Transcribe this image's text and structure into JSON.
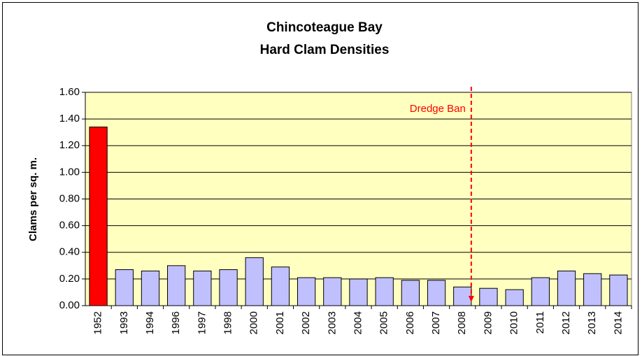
{
  "chart_data": {
    "type": "bar",
    "title": [
      "Chincoteague Bay",
      "Hard Clam Densities"
    ],
    "y_label": "Clams per sq. m.",
    "categories": [
      "1952",
      "1993",
      "1994",
      "1996",
      "1997",
      "1998",
      "2000",
      "2001",
      "2002",
      "2003",
      "2004",
      "2005",
      "2006",
      "2007",
      "2008",
      "2009",
      "2010",
      "2011",
      "2012",
      "2013",
      "2014"
    ],
    "values": [
      1.34,
      0.27,
      0.26,
      0.3,
      0.26,
      0.27,
      0.36,
      0.29,
      0.21,
      0.21,
      0.2,
      0.21,
      0.19,
      0.19,
      0.14,
      0.13,
      0.12,
      0.21,
      0.26,
      0.24,
      0.23
    ],
    "colors": [
      "#ff0000",
      "#c0c0ff",
      "#c0c0ff",
      "#c0c0ff",
      "#c0c0ff",
      "#c0c0ff",
      "#c0c0ff",
      "#c0c0ff",
      "#c0c0ff",
      "#c0c0ff",
      "#c0c0ff",
      "#c0c0ff",
      "#c0c0ff",
      "#c0c0ff",
      "#c0c0ff",
      "#c0c0ff",
      "#c0c0ff",
      "#c0c0ff",
      "#c0c0ff",
      "#c0c0ff",
      "#c0c0ff"
    ],
    "ylim": [
      0,
      1.6
    ],
    "yticks": [
      {
        "value": 0,
        "label": "0.00"
      },
      {
        "value": 0.2,
        "label": "0.20"
      },
      {
        "value": 0.4,
        "label": "0.40"
      },
      {
        "value": 0.6,
        "label": "0.60"
      },
      {
        "value": 0.8,
        "label": "0.80"
      },
      {
        "value": 1.0,
        "label": "1.00"
      },
      {
        "value": 1.2,
        "label": "1.20"
      },
      {
        "value": 1.4,
        "label": "1.40"
      },
      {
        "value": 1.6,
        "label": "1.60"
      }
    ],
    "grid": true,
    "plot_background": "#ffffc0",
    "annotation": {
      "text": "Dredge Ban",
      "color": "#ff0000"
    }
  }
}
